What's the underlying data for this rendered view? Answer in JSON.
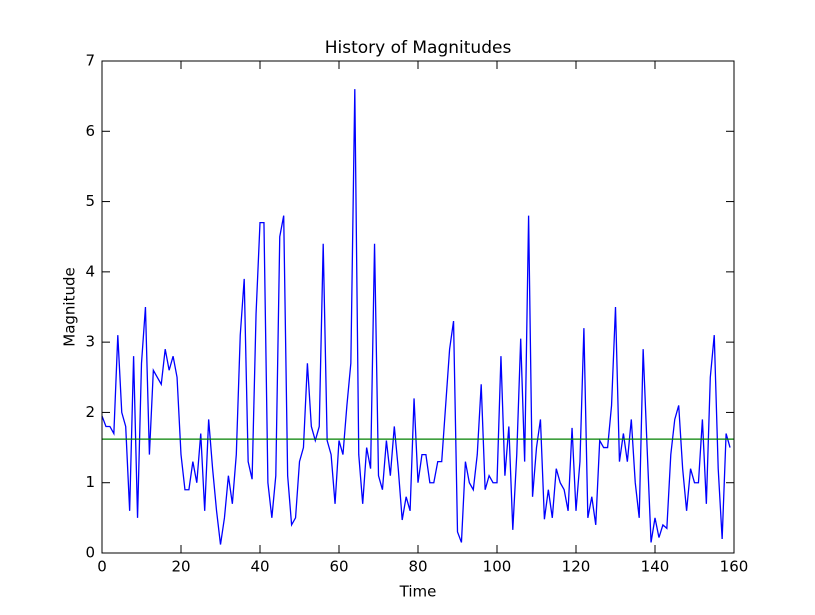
{
  "chart_data": {
    "type": "line",
    "title": "History of Magnitudes",
    "xlabel": "Time",
    "ylabel": "Magnitude",
    "x": [
      0,
      1,
      2,
      3,
      4,
      5,
      6,
      7,
      8,
      9,
      10,
      11,
      12,
      13,
      14,
      15,
      16,
      17,
      18,
      19,
      20,
      21,
      22,
      23,
      24,
      25,
      26,
      27,
      28,
      29,
      30,
      31,
      32,
      33,
      34,
      35,
      36,
      37,
      38,
      39,
      40,
      41,
      42,
      43,
      44,
      45,
      46,
      47,
      48,
      49,
      50,
      51,
      52,
      53,
      54,
      55,
      56,
      57,
      58,
      59,
      60,
      61,
      62,
      63,
      64,
      65,
      66,
      67,
      68,
      69,
      70,
      71,
      72,
      73,
      74,
      75,
      76,
      77,
      78,
      79,
      80,
      81,
      82,
      83,
      84,
      85,
      86,
      87,
      88,
      89,
      90,
      91,
      92,
      93,
      94,
      95,
      96,
      97,
      98,
      99,
      100,
      101,
      102,
      103,
      104,
      105,
      106,
      107,
      108,
      109,
      110,
      111,
      112,
      113,
      114,
      115,
      116,
      117,
      118,
      119,
      120,
      121,
      122,
      123,
      124,
      125,
      126,
      127,
      128,
      129,
      130,
      131,
      132,
      133,
      134,
      135,
      136,
      137,
      138,
      139,
      140,
      141,
      142,
      143,
      144,
      145,
      146,
      147,
      148,
      149,
      150,
      151,
      152,
      153,
      154,
      155,
      156,
      157,
      158,
      159
    ],
    "series": [
      {
        "color": "#0000ff",
        "values": [
          1.95,
          1.8,
          1.8,
          1.7,
          3.1,
          2.0,
          1.8,
          0.6,
          2.8,
          0.5,
          2.7,
          3.5,
          1.4,
          2.6,
          2.5,
          2.4,
          2.9,
          2.6,
          2.8,
          2.5,
          1.4,
          0.9,
          0.9,
          1.3,
          1.0,
          1.7,
          0.6,
          1.9,
          1.2,
          0.6,
          0.12,
          0.5,
          1.1,
          0.7,
          1.4,
          3.1,
          3.9,
          1.3,
          1.05,
          3.4,
          4.7,
          4.7,
          1.0,
          0.5,
          1.1,
          4.5,
          4.8,
          1.1,
          0.4,
          0.5,
          1.3,
          1.5,
          2.7,
          1.8,
          1.6,
          1.8,
          4.4,
          1.6,
          1.4,
          0.7,
          1.6,
          1.4,
          2.1,
          2.7,
          6.6,
          1.4,
          0.7,
          1.5,
          1.2,
          4.4,
          1.1,
          0.9,
          1.6,
          1.1,
          1.8,
          1.2,
          0.47,
          0.8,
          0.6,
          2.2,
          1.0,
          1.4,
          1.4,
          1.0,
          1.0,
          1.3,
          1.3,
          2.1,
          2.9,
          3.3,
          0.3,
          0.15,
          1.3,
          1.0,
          0.9,
          1.4,
          2.4,
          0.9,
          1.1,
          1.0,
          1.0,
          2.8,
          1.1,
          1.8,
          0.33,
          1.4,
          3.05,
          1.3,
          4.8,
          0.8,
          1.5,
          1.9,
          0.48,
          0.9,
          0.5,
          1.2,
          1.0,
          0.9,
          0.6,
          1.78,
          0.6,
          1.3,
          3.2,
          0.5,
          0.8,
          0.4,
          1.6,
          1.5,
          1.5,
          2.1,
          3.5,
          1.3,
          1.7,
          1.3,
          1.9,
          1.0,
          0.5,
          2.9,
          1.5,
          0.15,
          0.5,
          0.22,
          0.4,
          0.35,
          1.4,
          1.9,
          2.1,
          1.2,
          0.6,
          1.2,
          1.0,
          1.0,
          1.9,
          0.7,
          2.5,
          3.1,
          1.2,
          0.2,
          1.7,
          1.5
        ]
      }
    ],
    "hline": {
      "value": 1.62,
      "color": "#008000"
    },
    "xlim": [
      0,
      160
    ],
    "xticks": [
      0,
      20,
      40,
      60,
      80,
      100,
      120,
      140,
      160
    ],
    "ylim": [
      0,
      7
    ],
    "yticks": [
      0,
      1,
      2,
      3,
      4,
      5,
      6,
      7
    ]
  }
}
